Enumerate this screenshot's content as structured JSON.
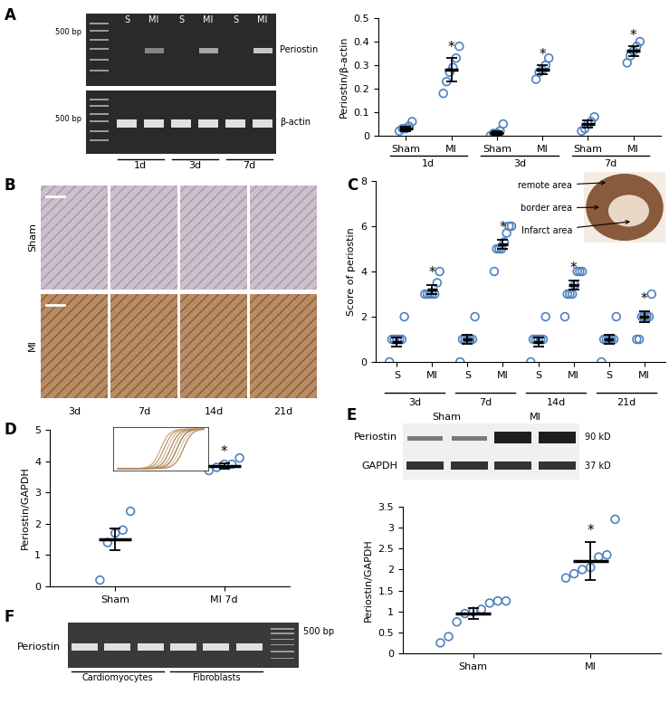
{
  "panel_labels": [
    "A",
    "B",
    "C",
    "D",
    "E",
    "F"
  ],
  "chart_data": [
    {
      "type": "scatter",
      "categories": [
        "Sham",
        "MI",
        "Sham",
        "MI",
        "Sham",
        "MI"
      ],
      "group_labels": [
        "1d",
        "3d",
        "7d"
      ],
      "y_label": "Periostin/β-actin",
      "color": "#4f81bd",
      "marker": "o",
      "points": [
        [
          0.02,
          0.03,
          0.03,
          0.04,
          0.06
        ],
        [
          0.18,
          0.23,
          0.27,
          0.29,
          0.33,
          0.38
        ],
        [
          0.0,
          0.01,
          0.01,
          0.02,
          0.05
        ],
        [
          0.24,
          0.27,
          0.28,
          0.3,
          0.33
        ],
        [
          0.02,
          0.03,
          0.05,
          0.06,
          0.08
        ],
        [
          0.31,
          0.34,
          0.36,
          0.38,
          0.4
        ]
      ],
      "mean": [
        0.03,
        0.28,
        0.01,
        0.28,
        0.05,
        0.36
      ],
      "error": [
        0.01,
        0.05,
        0.01,
        0.02,
        0.015,
        0.02
      ],
      "annotations": [
        {
          "index": 1,
          "text": "*"
        },
        {
          "index": 3,
          "text": "*"
        },
        {
          "index": 5,
          "text": "*"
        }
      ],
      "ylim": [
        0,
        0.5
      ],
      "yticks": [
        0,
        0.1,
        0.2,
        0.3,
        0.4,
        0.5
      ]
    },
    {
      "type": "scatter",
      "categories": [
        "S",
        "MI",
        "S",
        "MI",
        "S",
        "MI",
        "S",
        "MI"
      ],
      "group_labels": [
        "3d",
        "7d",
        "14d",
        "21d"
      ],
      "y_label": "Score of periostin",
      "color": "#4f81bd",
      "marker": "o",
      "points": [
        [
          0,
          1,
          1,
          1,
          1,
          1,
          2
        ],
        [
          3,
          3,
          3,
          3,
          3,
          3.5,
          4
        ],
        [
          0,
          1,
          1,
          1,
          1,
          1,
          2
        ],
        [
          4,
          5,
          5,
          5,
          5.3,
          5.7,
          6,
          6
        ],
        [
          0,
          1,
          1,
          1,
          1,
          1,
          2
        ],
        [
          2,
          3,
          3,
          3,
          3.4,
          4,
          4,
          4
        ],
        [
          0,
          1,
          1,
          1,
          1,
          1,
          2
        ],
        [
          1,
          1,
          2,
          2,
          2,
          2,
          3
        ]
      ],
      "mean": [
        0.9,
        3.2,
        1,
        5.2,
        0.9,
        3.4,
        1,
        2
      ],
      "error": [
        0.2,
        0.2,
        0.2,
        0.2,
        0.2,
        0.2,
        0.2,
        0.25
      ],
      "annotations": [
        {
          "index": 1,
          "text": "*"
        },
        {
          "index": 3,
          "text": "*"
        },
        {
          "index": 5,
          "text": "*"
        },
        {
          "index": 7,
          "text": "*"
        }
      ],
      "ylim": [
        0,
        8
      ],
      "yticks": [
        0,
        2,
        4,
        6,
        8
      ]
    },
    {
      "type": "scatter",
      "categories": [
        "Sham",
        "MI 7d"
      ],
      "y_label": "Periostin/GAPDH",
      "color": "#4f81bd",
      "marker": "o",
      "points": [
        [
          0.2,
          1.4,
          1.7,
          1.8,
          2.4
        ],
        [
          3.7,
          3.8,
          3.9,
          3.9,
          4.1
        ]
      ],
      "mean": [
        1.5,
        3.85
      ],
      "error": [
        0.35,
        0.08
      ],
      "annotations": [
        {
          "index": 1,
          "text": "*"
        }
      ],
      "ylim": [
        0,
        5
      ],
      "yticks": [
        0,
        1,
        2,
        3,
        4,
        5
      ]
    },
    {
      "type": "scatter",
      "categories": [
        "Sham",
        "MI"
      ],
      "y_label": "Periostin/GAPDH",
      "color": "#4f81bd",
      "marker": "o",
      "points": [
        [
          0.25,
          0.4,
          0.75,
          0.95,
          1.0,
          1.05,
          1.2,
          1.25,
          1.25
        ],
        [
          1.8,
          1.9,
          2.0,
          2.05,
          2.3,
          2.35,
          3.2
        ]
      ],
      "mean": [
        0.95,
        2.2
      ],
      "error": [
        0.12,
        0.45
      ],
      "annotations": [
        {
          "index": 1,
          "text": "*"
        }
      ],
      "ylim": [
        0,
        3.5
      ],
      "yticks": [
        0,
        0.5,
        1,
        1.5,
        2,
        2.5,
        3,
        3.5
      ]
    }
  ],
  "gel_A": {
    "marker_label": "500 bp",
    "lane_labels": [
      "S",
      "MI",
      "S",
      "MI",
      "S",
      "MI"
    ],
    "bands": [
      "Periostin",
      "β-actin"
    ],
    "day_labels": [
      "1d",
      "3d",
      "7d"
    ]
  },
  "histology_B": {
    "rows": [
      "Sham",
      "MI"
    ],
    "columns": [
      "3d",
      "7d",
      "14d",
      "21d"
    ]
  },
  "inset_C": {
    "labels": [
      "remote area",
      "border area",
      "Infarct area"
    ]
  },
  "blot_E": {
    "column_labels": [
      "Sham",
      "MI"
    ],
    "bands": [
      {
        "name": "Periostin",
        "size": "90 kD"
      },
      {
        "name": "GAPDH",
        "size": "37 kD"
      }
    ]
  },
  "gel_F": {
    "band": "Periostin",
    "groups": [
      "Cardiomyocytes",
      "Fibroblasts"
    ],
    "marker_label": "500 bp"
  }
}
